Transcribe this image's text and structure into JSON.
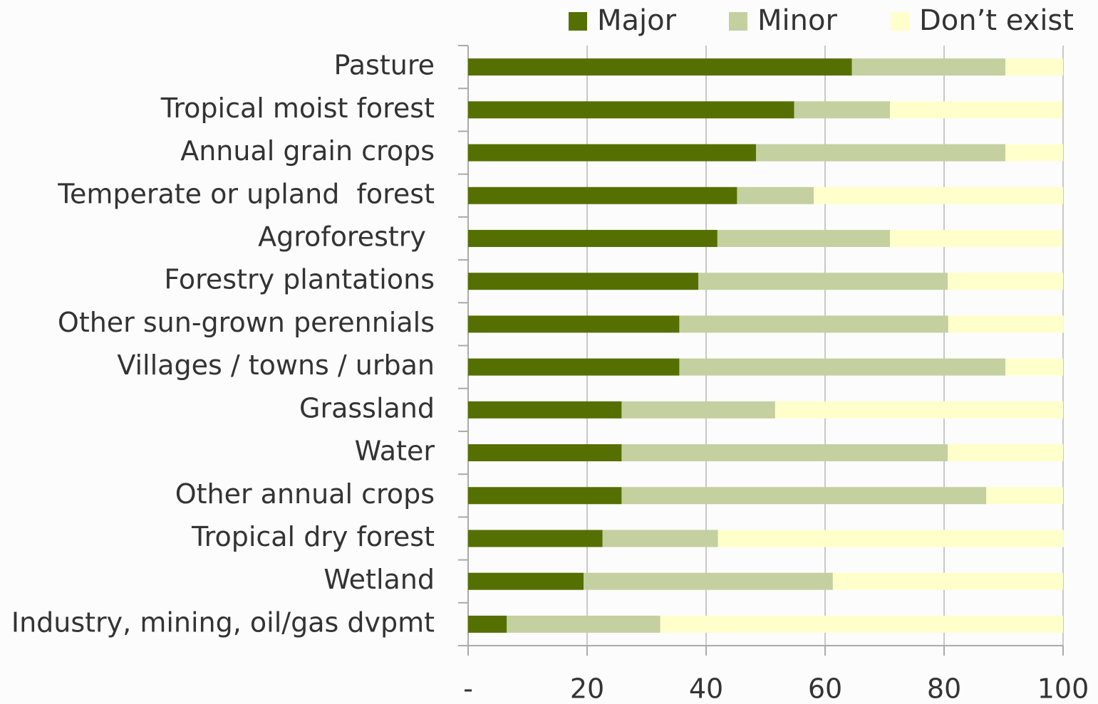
{
  "chart_data": {
    "type": "stacked-barh",
    "categories": [
      "Pasture",
      "Tropical moist forest",
      "Annual grain crops",
      "Temperate or upland  forest",
      "Agroforestry ",
      "Forestry plantations",
      "Other sun-grown perennials",
      "Villages / towns / urban",
      "Grassland",
      "Water",
      "Other annual crops",
      "Tropical dry forest",
      "Wetland",
      "Industry, mining, oil/gas dvpmt"
    ],
    "series": [
      {
        "name": "Major",
        "color": "#557000",
        "values": [
          64.5,
          54.8,
          48.4,
          45.2,
          41.9,
          38.7,
          35.5,
          35.5,
          25.8,
          25.8,
          25.8,
          22.6,
          19.4,
          6.5
        ]
      },
      {
        "name": "Minor",
        "color": "#c4d0a0",
        "values": [
          25.8,
          16.1,
          41.9,
          12.9,
          29.0,
          41.9,
          45.2,
          54.8,
          25.8,
          54.8,
          61.3,
          19.4,
          41.9,
          25.8
        ]
      },
      {
        "name": "Don’t exist",
        "color": "#ffffcc",
        "values": [
          9.7,
          29.0,
          9.7,
          41.9,
          29.0,
          19.4,
          19.4,
          9.7,
          48.4,
          19.4,
          12.9,
          58.1,
          38.7,
          67.7
        ]
      }
    ],
    "xlim": [
      0,
      100
    ],
    "xticks": [
      {
        "value": 0,
        "label": "-"
      },
      20,
      40,
      60,
      80,
      100
    ],
    "grid": true,
    "legend": "top-right"
  }
}
